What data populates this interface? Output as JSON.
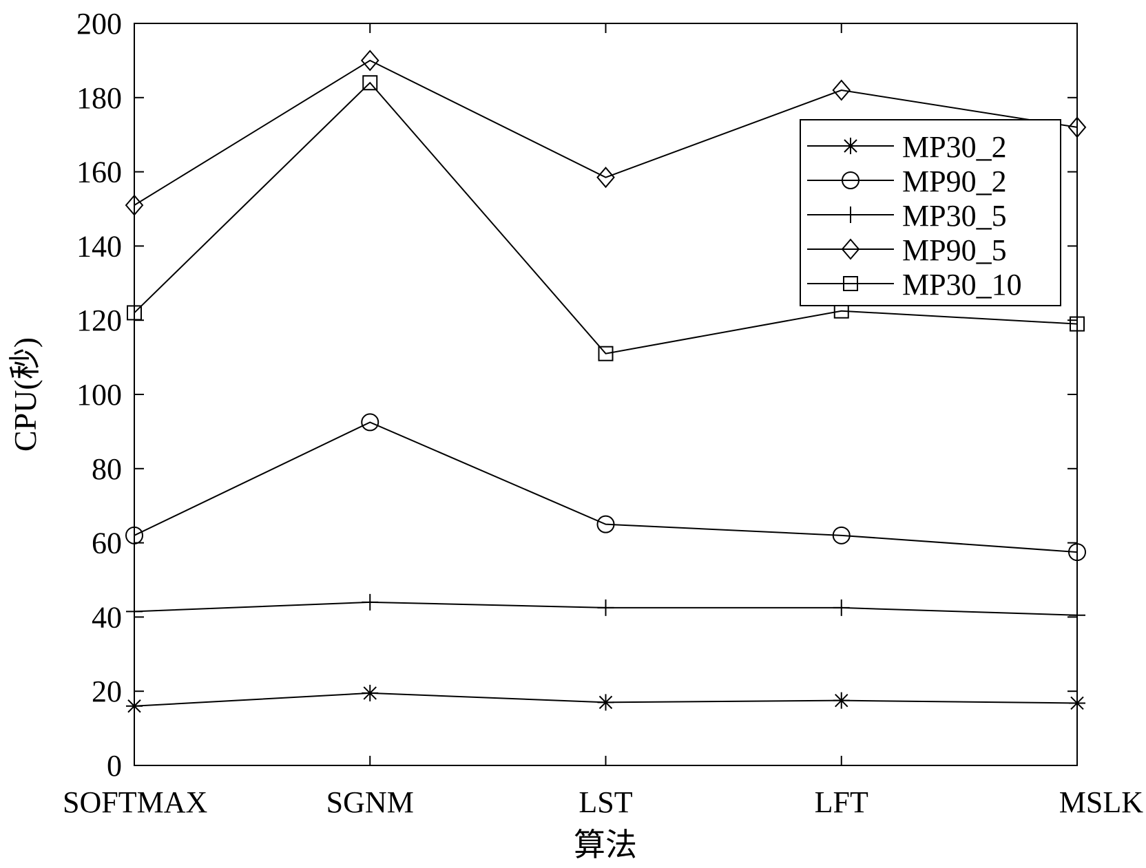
{
  "chart_data": {
    "type": "line",
    "title": "",
    "xlabel": "算法",
    "ylabel": "CPU(秒)",
    "categories": [
      "SOFTMAX",
      "SGNM",
      "LST",
      "LFT",
      "MSLK"
    ],
    "ylim": [
      0,
      200
    ],
    "yticks": [
      0,
      20,
      40,
      60,
      80,
      100,
      120,
      140,
      160,
      180,
      200
    ],
    "grid": false,
    "legend_position": "top-right",
    "series": [
      {
        "name": "MP30_2",
        "marker": "star",
        "values": [
          16,
          19.5,
          17,
          17.5,
          16.8
        ]
      },
      {
        "name": "MP90_2",
        "marker": "circle",
        "values": [
          62,
          92.5,
          65,
          62,
          57.5
        ]
      },
      {
        "name": "MP30_5",
        "marker": "plus",
        "values": [
          41.5,
          44,
          42.5,
          42.5,
          40.5
        ]
      },
      {
        "name": "MP90_5",
        "marker": "diamond",
        "values": [
          151,
          190,
          158.5,
          182,
          172
        ]
      },
      {
        "name": "MP30_10",
        "marker": "square",
        "values": [
          122,
          184,
          111,
          122.5,
          119
        ]
      }
    ],
    "colors": {
      "line": "#000000",
      "background": "#ffffff"
    }
  }
}
